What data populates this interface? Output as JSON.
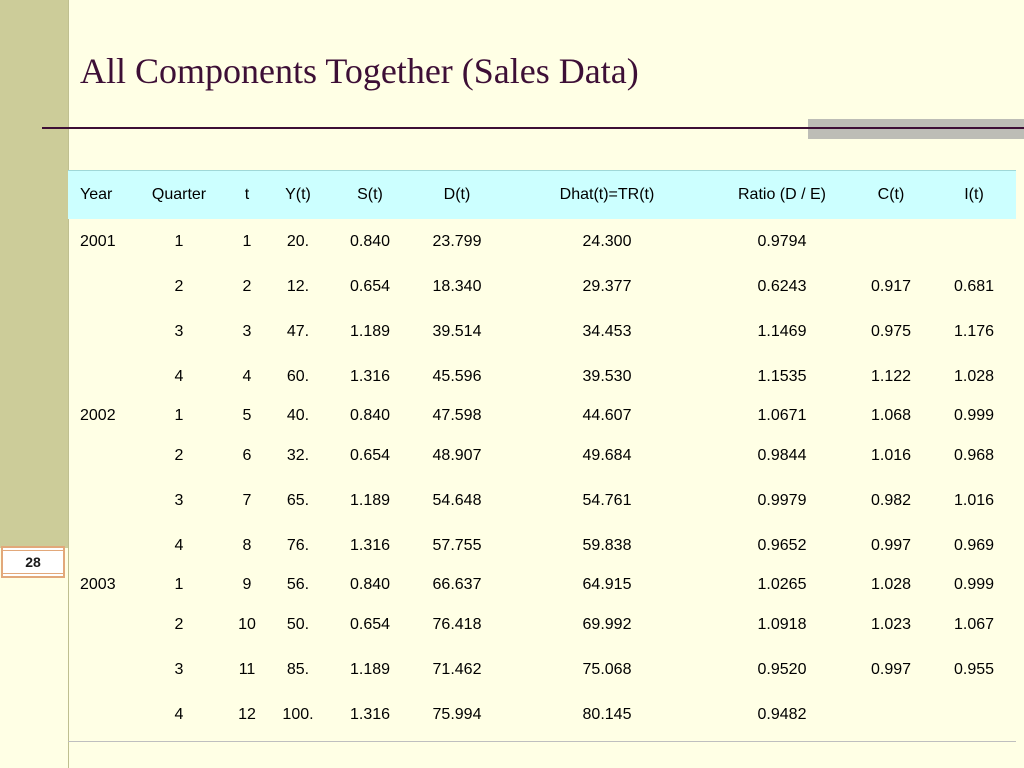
{
  "slide": {
    "title": "All Components Together (Sales Data)",
    "number": "28"
  },
  "table": {
    "headers": [
      "Year",
      "Quarter",
      "t",
      "Y(t)",
      "S(t)",
      "D(t)",
      "Dhat(t)=TR(t)",
      "Ratio (D / E)",
      "C(t)",
      "I(t)"
    ],
    "rows": [
      [
        "2001",
        "1",
        "1",
        "20.",
        "0.840",
        "23.799",
        "24.300",
        "0.9794",
        "",
        ""
      ],
      [
        "",
        "2",
        "2",
        "12.",
        "0.654",
        "18.340",
        "29.377",
        "0.6243",
        "0.917",
        "0.681"
      ],
      [
        "",
        "3",
        "3",
        "47.",
        "1.189",
        "39.514",
        "34.453",
        "1.1469",
        "0.975",
        "1.176"
      ],
      [
        "",
        "4",
        "4",
        "60.",
        "1.316",
        "45.596",
        "39.530",
        "1.1535",
        "1.122",
        "1.028"
      ],
      [
        "2002",
        "1",
        "5",
        "40.",
        "0.840",
        "47.598",
        "44.607",
        "1.0671",
        "1.068",
        "0.999"
      ],
      [
        "",
        "2",
        "6",
        "32.",
        "0.654",
        "48.907",
        "49.684",
        "0.9844",
        "1.016",
        "0.968"
      ],
      [
        "",
        "3",
        "7",
        "65.",
        "1.189",
        "54.648",
        "54.761",
        "0.9979",
        "0.982",
        "1.016"
      ],
      [
        "",
        "4",
        "8",
        "76.",
        "1.316",
        "57.755",
        "59.838",
        "0.9652",
        "0.997",
        "0.969"
      ],
      [
        "2003",
        "1",
        "9",
        "56.",
        "0.840",
        "66.637",
        "64.915",
        "1.0265",
        "1.028",
        "0.999"
      ],
      [
        "",
        "2",
        "10",
        "50.",
        "0.654",
        "76.418",
        "69.992",
        "1.0918",
        "1.023",
        "1.067"
      ],
      [
        "",
        "3",
        "11",
        "85.",
        "1.189",
        "71.462",
        "75.068",
        "0.9520",
        "0.997",
        "0.955"
      ],
      [
        "",
        "4",
        "12",
        "100.",
        "1.316",
        "75.994",
        "80.145",
        "0.9482",
        "",
        ""
      ]
    ]
  },
  "colors": {
    "background": "#FFFFE5",
    "sidebar": "#CCCC99",
    "title_text": "#3D0F36",
    "header_row": "#CCFFFF",
    "slide_number_border": "#E2A87A"
  }
}
